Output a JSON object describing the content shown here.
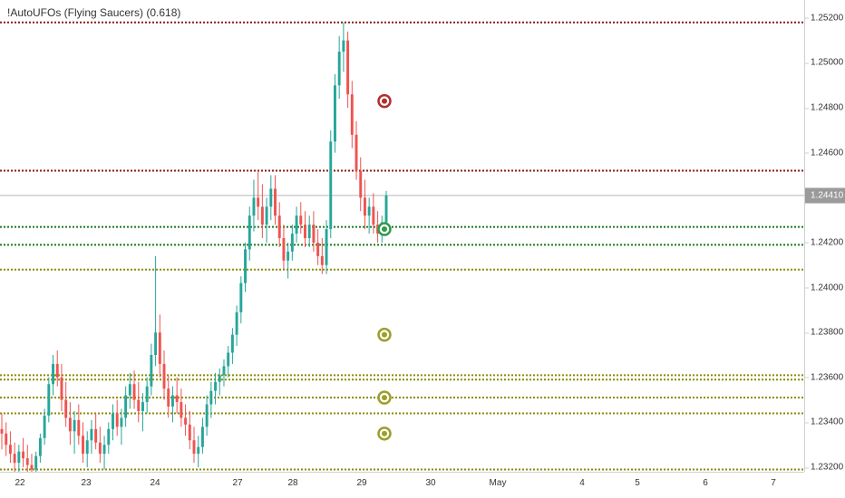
{
  "indicator": {
    "title": "!AutoUFOs (Flying Saucers) (0.618)"
  },
  "current_price_label": "1.24410",
  "chart_data": {
    "type": "candlestick",
    "title": "!AutoUFOs (Flying Saucers) (0.618)",
    "xlabel": "",
    "ylabel": "",
    "ylim": [
      1.2318,
      1.2528
    ],
    "y_ticks": [
      "1.25200",
      "1.25000",
      "1.24800",
      "1.24600",
      "1.24400",
      "1.24200",
      "1.24000",
      "1.23800",
      "1.23600",
      "1.23400",
      "1.23200"
    ],
    "x_ticks": [
      "22",
      "23",
      "24",
      "27",
      "28",
      "29",
      "30",
      "May",
      "4",
      "5",
      "6",
      "7"
    ],
    "grid": false,
    "current_price": 1.2441,
    "candle_colors": {
      "up": "#26a69a",
      "down": "#ef5350"
    },
    "horizontal_levels": [
      {
        "price": 1.2518,
        "color": "#8b1a1a",
        "style": "dotted"
      },
      {
        "price": 1.2452,
        "color": "#8b1a1a",
        "style": "dotted"
      },
      {
        "price": 1.2427,
        "color": "#1b7a1b",
        "style": "dotted"
      },
      {
        "price": 1.2419,
        "color": "#1b7a1b",
        "style": "dotted"
      },
      {
        "price": 1.2408,
        "color": "#8a8a00",
        "style": "dotted"
      },
      {
        "price": 1.2361,
        "color": "#8a8a00",
        "style": "dotted"
      },
      {
        "price": 1.2359,
        "color": "#8a8a00",
        "style": "dotted"
      },
      {
        "price": 1.2351,
        "color": "#8a8a00",
        "style": "dotted"
      },
      {
        "price": 1.2344,
        "color": "#8a8a00",
        "style": "dotted"
      },
      {
        "price": 1.2319,
        "color": "#8a8a00",
        "style": "dotted"
      }
    ],
    "saucers": [
      {
        "price": 1.2483,
        "color": "#b03030"
      },
      {
        "price": 1.2426,
        "color": "#2e9a4a"
      },
      {
        "price": 1.2379,
        "color": "#9aa02a"
      },
      {
        "price": 1.2351,
        "color": "#9aa02a"
      },
      {
        "price": 1.2335,
        "color": "#9aa02a"
      }
    ],
    "candles": [
      [
        1.2337,
        1.2344,
        1.2328,
        1.2335
      ],
      [
        1.2335,
        1.234,
        1.2325,
        1.233
      ],
      [
        1.233,
        1.2336,
        1.2322,
        1.2326
      ],
      [
        1.2326,
        1.2331,
        1.2318,
        1.2322
      ],
      [
        1.2322,
        1.233,
        1.2318,
        1.2327
      ],
      [
        1.2327,
        1.2333,
        1.232,
        1.2324
      ],
      [
        1.2324,
        1.233,
        1.2318,
        1.2321
      ],
      [
        1.2321,
        1.2326,
        1.2316,
        1.2319
      ],
      [
        1.2319,
        1.2327,
        1.2316,
        1.2325
      ],
      [
        1.2325,
        1.2335,
        1.2322,
        1.2333
      ],
      [
        1.2333,
        1.2346,
        1.233,
        1.2343
      ],
      [
        1.2343,
        1.236,
        1.234,
        1.2357
      ],
      [
        1.2357,
        1.237,
        1.2352,
        1.2366
      ],
      [
        1.2366,
        1.2372,
        1.2356,
        1.236
      ],
      [
        1.236,
        1.2366,
        1.2345,
        1.235
      ],
      [
        1.235,
        1.2358,
        1.2338,
        1.2342
      ],
      [
        1.2342,
        1.2349,
        1.233,
        1.2336
      ],
      [
        1.2336,
        1.2345,
        1.2326,
        1.2341
      ],
      [
        1.2341,
        1.2348,
        1.233,
        1.2334
      ],
      [
        1.2334,
        1.234,
        1.2322,
        1.2326
      ],
      [
        1.2326,
        1.2336,
        1.232,
        1.2332
      ],
      [
        1.2332,
        1.2341,
        1.2326,
        1.2337
      ],
      [
        1.2337,
        1.2344,
        1.2328,
        1.2331
      ],
      [
        1.2331,
        1.2338,
        1.2322,
        1.2326
      ],
      [
        1.2326,
        1.2334,
        1.2319,
        1.233
      ],
      [
        1.233,
        1.234,
        1.2326,
        1.2337
      ],
      [
        1.2337,
        1.2348,
        1.2332,
        1.2344
      ],
      [
        1.2344,
        1.235,
        1.2334,
        1.2338
      ],
      [
        1.2338,
        1.2346,
        1.233,
        1.2342
      ],
      [
        1.2342,
        1.2356,
        1.2338,
        1.2352
      ],
      [
        1.2352,
        1.2362,
        1.2346,
        1.2357
      ],
      [
        1.2357,
        1.2363,
        1.2346,
        1.235
      ],
      [
        1.235,
        1.2358,
        1.234,
        1.2345
      ],
      [
        1.2345,
        1.2353,
        1.2336,
        1.2349
      ],
      [
        1.2349,
        1.236,
        1.2344,
        1.2356
      ],
      [
        1.2356,
        1.2375,
        1.2352,
        1.237
      ],
      [
        1.237,
        1.2414,
        1.2365,
        1.238
      ],
      [
        1.238,
        1.2388,
        1.236,
        1.2366
      ],
      [
        1.2366,
        1.2372,
        1.235,
        1.2355
      ],
      [
        1.2355,
        1.2361,
        1.2342,
        1.2347
      ],
      [
        1.2347,
        1.2356,
        1.234,
        1.2352
      ],
      [
        1.2352,
        1.236,
        1.2344,
        1.2349
      ],
      [
        1.2349,
        1.2355,
        1.2338,
        1.2342
      ],
      [
        1.2342,
        1.2348,
        1.2334,
        1.2339
      ],
      [
        1.2339,
        1.2345,
        1.2328,
        1.2332
      ],
      [
        1.2332,
        1.2338,
        1.2322,
        1.2326
      ],
      [
        1.2326,
        1.2334,
        1.232,
        1.2329
      ],
      [
        1.2329,
        1.2342,
        1.2326,
        1.2338
      ],
      [
        1.2338,
        1.2352,
        1.2334,
        1.2348
      ],
      [
        1.2348,
        1.2358,
        1.2342,
        1.2354
      ],
      [
        1.2354,
        1.2362,
        1.2348,
        1.2358
      ],
      [
        1.2358,
        1.2364,
        1.2352,
        1.2361
      ],
      [
        1.2361,
        1.2368,
        1.2356,
        1.2365
      ],
      [
        1.2365,
        1.2374,
        1.236,
        1.2371
      ],
      [
        1.2371,
        1.2382,
        1.2366,
        1.2379
      ],
      [
        1.2379,
        1.2392,
        1.2374,
        1.2389
      ],
      [
        1.2389,
        1.2405,
        1.2384,
        1.2402
      ],
      [
        1.2402,
        1.242,
        1.2398,
        1.2417
      ],
      [
        1.2417,
        1.2436,
        1.2412,
        1.2432
      ],
      [
        1.2432,
        1.2448,
        1.2425,
        1.244
      ],
      [
        1.244,
        1.2452,
        1.243,
        1.2436
      ],
      [
        1.2436,
        1.2446,
        1.2422,
        1.2428
      ],
      [
        1.2428,
        1.244,
        1.242,
        1.2436
      ],
      [
        1.2436,
        1.245,
        1.243,
        1.2444
      ],
      [
        1.2444,
        1.245,
        1.2428,
        1.2432
      ],
      [
        1.2432,
        1.2438,
        1.2418,
        1.2422
      ],
      [
        1.2422,
        1.2428,
        1.2408,
        1.2412
      ],
      [
        1.2412,
        1.242,
        1.2404,
        1.2416
      ],
      [
        1.2416,
        1.2428,
        1.2412,
        1.2424
      ],
      [
        1.2424,
        1.2436,
        1.242,
        1.2432
      ],
      [
        1.2432,
        1.2438,
        1.2424,
        1.2428
      ],
      [
        1.2428,
        1.2434,
        1.2418,
        1.2422
      ],
      [
        1.2422,
        1.2432,
        1.2418,
        1.2428
      ],
      [
        1.2428,
        1.2434,
        1.2416,
        1.242
      ],
      [
        1.242,
        1.2426,
        1.241,
        1.2414
      ],
      [
        1.2414,
        1.2422,
        1.2406,
        1.241
      ],
      [
        1.241,
        1.243,
        1.2406,
        1.2426
      ],
      [
        1.2426,
        1.247,
        1.2422,
        1.2465
      ],
      [
        1.2465,
        1.2495,
        1.246,
        1.249
      ],
      [
        1.249,
        1.2512,
        1.2484,
        1.2505
      ],
      [
        1.2505,
        1.2518,
        1.2496,
        1.251
      ],
      [
        1.251,
        1.2514,
        1.248,
        1.2486
      ],
      [
        1.2486,
        1.2492,
        1.2462,
        1.2468
      ],
      [
        1.2468,
        1.2474,
        1.2448,
        1.2452
      ],
      [
        1.2452,
        1.2458,
        1.2434,
        1.244
      ],
      [
        1.244,
        1.2448,
        1.2426,
        1.2432
      ],
      [
        1.2432,
        1.244,
        1.2424,
        1.2436
      ],
      [
        1.2436,
        1.2442,
        1.2424,
        1.2428
      ],
      [
        1.2428,
        1.2434,
        1.242,
        1.2424
      ],
      [
        1.2424,
        1.2432,
        1.242,
        1.2429
      ],
      [
        1.2429,
        1.2443,
        1.2426,
        1.2441
      ]
    ]
  }
}
